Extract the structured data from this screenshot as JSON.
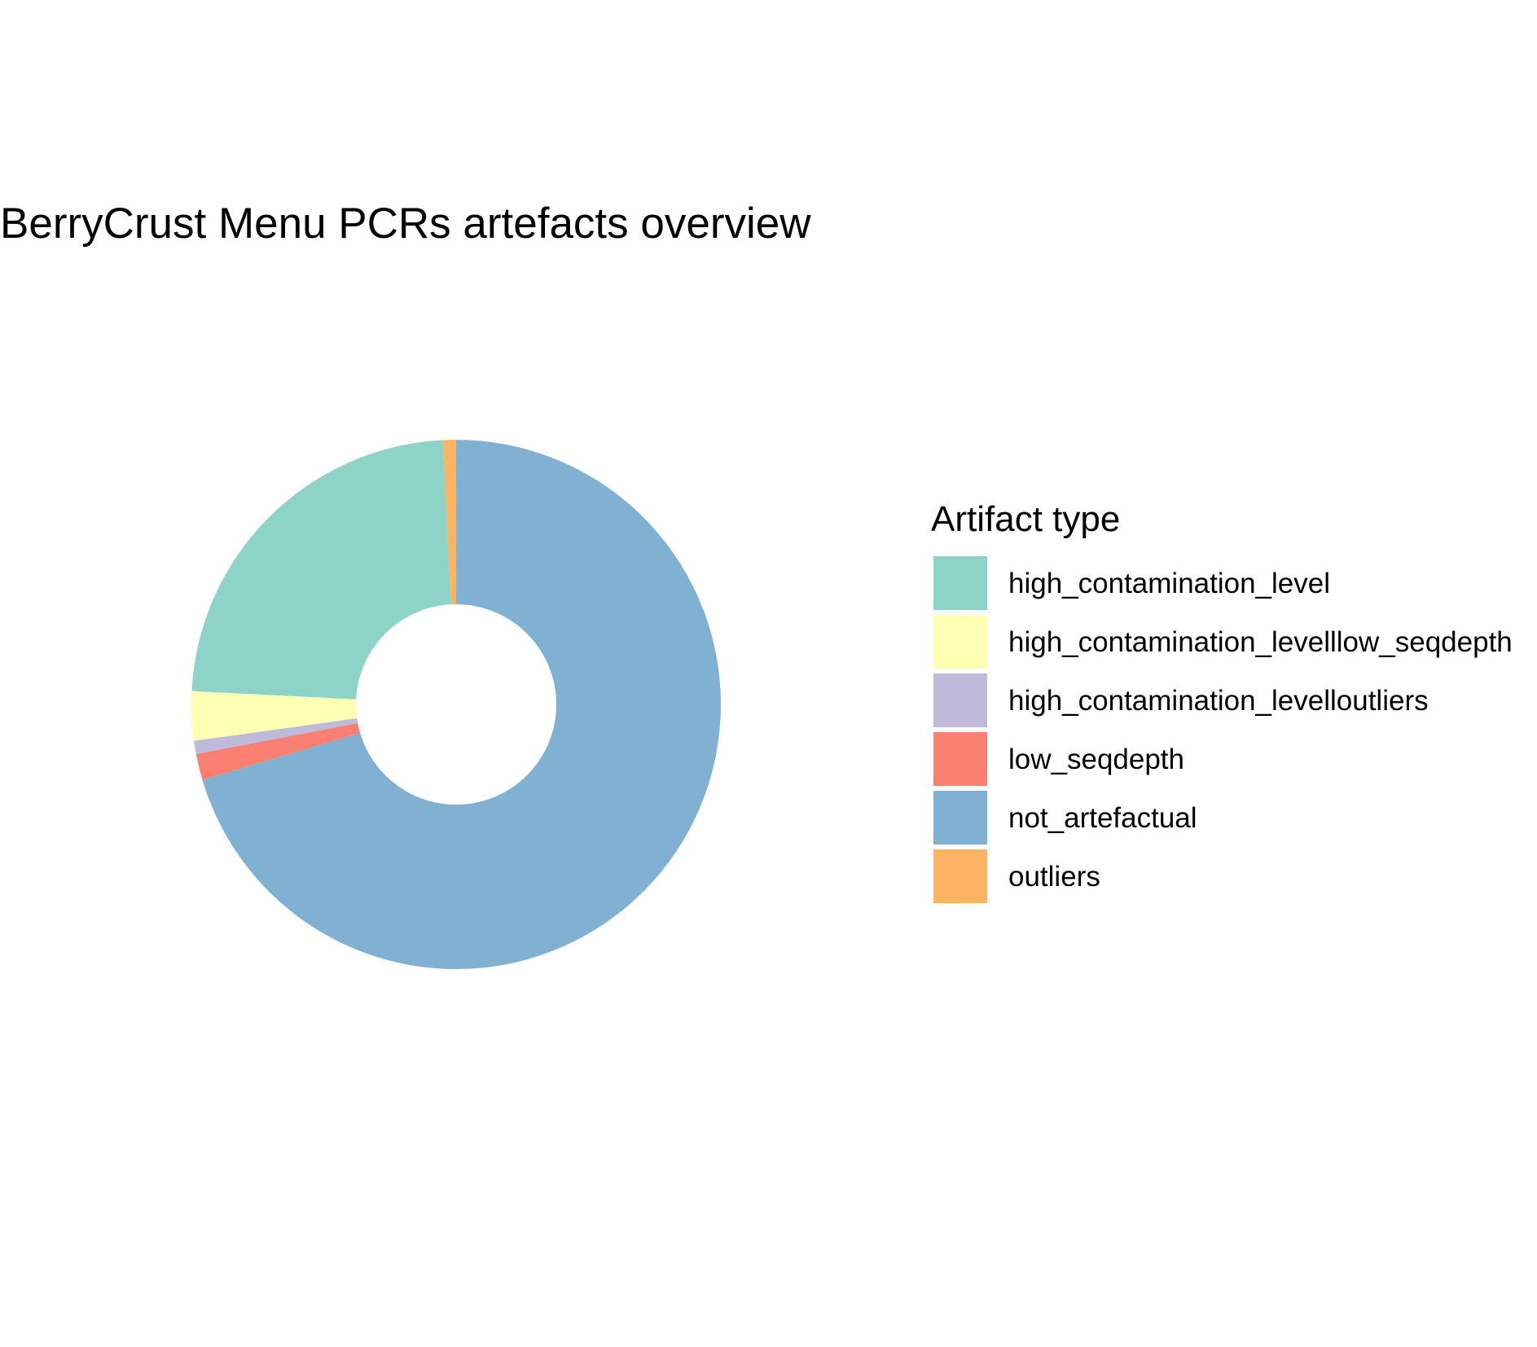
{
  "chart_data": {
    "type": "pie",
    "style": "donut",
    "title": "BerryCrust Menu PCRs artefacts overview",
    "legend": {
      "title": "Artifact type",
      "position": "right"
    },
    "start_angle_deg": 0,
    "direction": "counterclockwise",
    "slices": [
      {
        "label": "outliers",
        "value": 0.8,
        "color": "#FDB462"
      },
      {
        "label": "high_contamination_level",
        "value": 23.4,
        "color": "#8DD3C7"
      },
      {
        "label": "high_contamination_levelllow_seqdepth",
        "value": 3.0,
        "color": "#FFFFB3"
      },
      {
        "label": "high_contamination_levelloutliers",
        "value": 0.8,
        "color": "#BEBADA"
      },
      {
        "label": "low_seqdepth",
        "value": 1.6,
        "color": "#FB8072"
      },
      {
        "label": "not_artefactual",
        "value": 70.4,
        "color": "#80B1D3"
      }
    ],
    "legend_order": [
      "high_contamination_level",
      "high_contamination_levelllow_seqdepth",
      "high_contamination_levelloutliers",
      "low_seqdepth",
      "not_artefactual",
      "outliers"
    ],
    "grid": false,
    "axes": false
  }
}
